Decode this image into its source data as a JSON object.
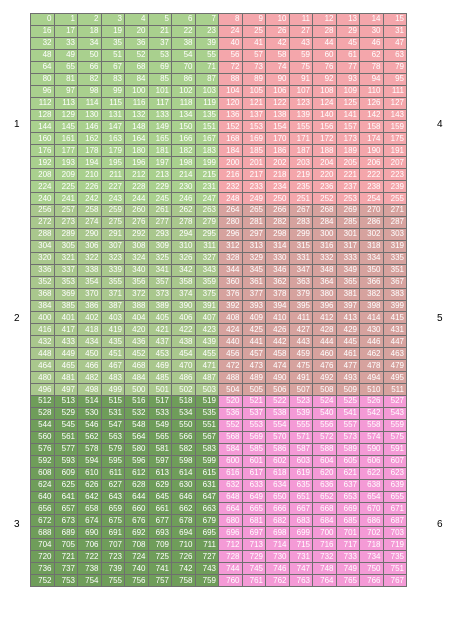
{
  "grid": {
    "columns": 16,
    "start_value": 0,
    "end_value": 767,
    "block_colors": {
      "1": "#a9d08e",
      "4": "#f4a6ab",
      "2": "#a9c78d",
      "5": "#d6a29e",
      "3": "#6f9d5a",
      "6": "#f49ad6"
    }
  },
  "block_labels": {
    "b1": "1",
    "b4": "4",
    "b2": "2",
    "b5": "5",
    "b3": "3",
    "b6": "6"
  }
}
